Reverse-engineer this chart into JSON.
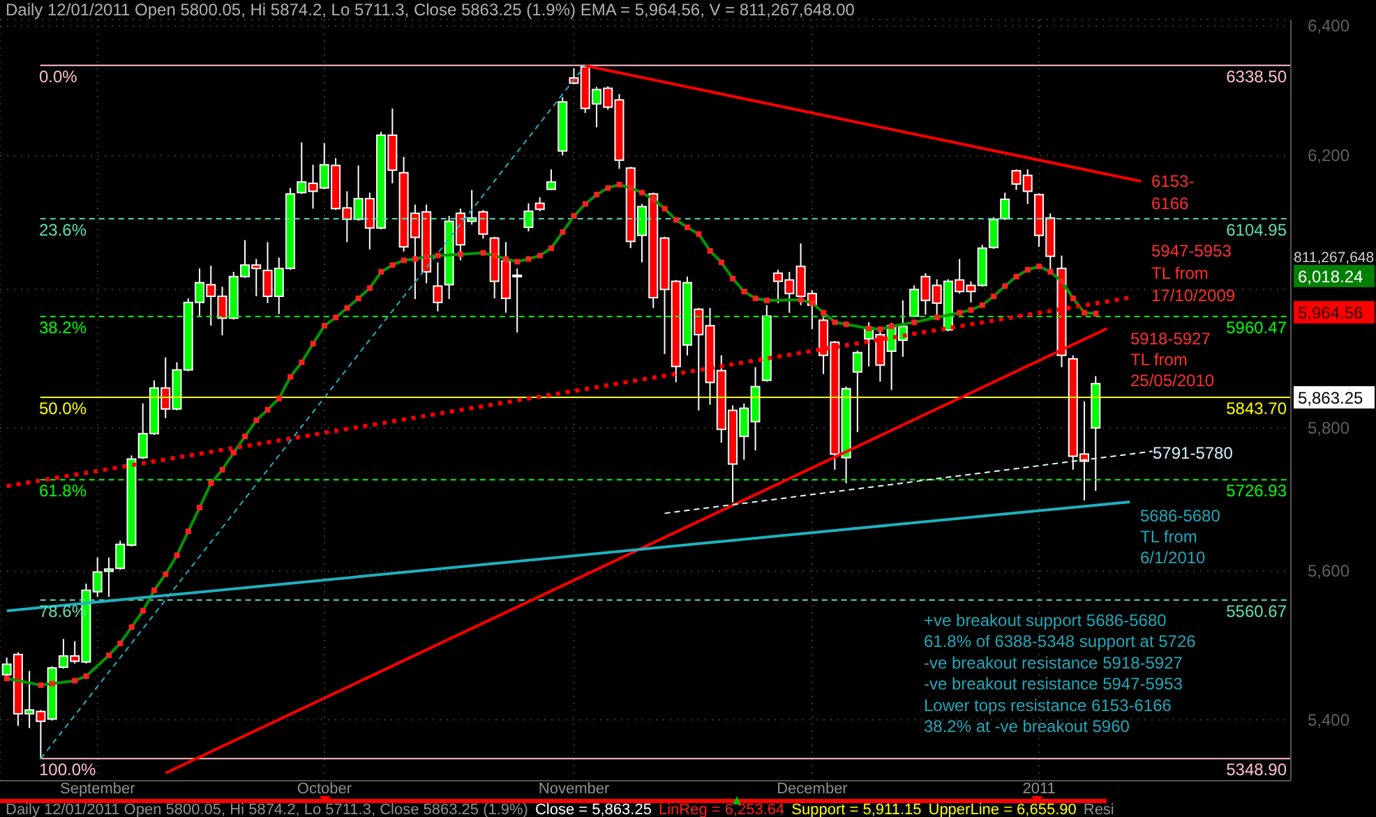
{
  "chart_data": {
    "type": "candlestick",
    "title": "Daily 12/01/2011 Open 5800.05, Hi 5874.2, Lo 5711.3, Close 5863.25 (1.9%) EMA = 5,964.56, V = 811,267,648.00",
    "categories": [
      null,
      null,
      null,
      null,
      null,
      null,
      null,
      null,
      "September",
      null,
      null,
      null,
      null,
      null,
      null,
      null,
      null,
      null,
      null,
      null,
      null,
      null,
      null,
      null,
      null,
      null,
      null,
      null,
      "October",
      null,
      null,
      null,
      null,
      null,
      null,
      null,
      null,
      null,
      null,
      null,
      null,
      null,
      null,
      null,
      null,
      null,
      null,
      null,
      null,
      null,
      "November",
      null,
      null,
      null,
      null,
      null,
      null,
      null,
      null,
      null,
      null,
      null,
      null,
      null,
      null,
      null,
      null,
      null,
      null,
      null,
      null,
      "December",
      null,
      null,
      null,
      null,
      null,
      null,
      null,
      null,
      null,
      null,
      null,
      null,
      null,
      null,
      null,
      null,
      null,
      null,
      null,
      "2011",
      null,
      null,
      null,
      null,
      null,
      null,
      null,
      null,
      null,
      null,
      null,
      null,
      null,
      null,
      null,
      null,
      null,
      null,
      null,
      null,
      null
    ],
    "ohlc": [
      [
        5460,
        5483,
        5458,
        5474
      ],
      [
        5487,
        5490,
        5392,
        5408
      ],
      [
        5408,
        5465,
        5389,
        5413
      ],
      [
        5411,
        5413,
        5349,
        5398
      ],
      [
        5401,
        5471,
        5399,
        5469
      ],
      [
        5470,
        5508,
        5468,
        5485
      ],
      [
        5485,
        5505,
        5475,
        5478
      ],
      [
        5477,
        5583,
        5475,
        5574
      ],
      [
        5572,
        5619,
        5565,
        5599
      ],
      [
        5600,
        5619,
        5565,
        5603
      ],
      [
        5604,
        5642,
        5602,
        5637
      ],
      [
        5636,
        5761,
        5634,
        5756
      ],
      [
        5758,
        5835,
        5756,
        5792
      ],
      [
        5792,
        5868,
        5790,
        5857
      ],
      [
        5857,
        5901,
        5814,
        5827
      ],
      [
        5827,
        5894,
        5825,
        5883
      ],
      [
        5883,
        5987,
        5881,
        5981
      ],
      [
        5981,
        6031,
        5961,
        6010
      ],
      [
        6007,
        6035,
        5947,
        5990
      ],
      [
        5990,
        6004,
        5933,
        5958
      ],
      [
        5958,
        6026,
        5956,
        6019
      ],
      [
        6019,
        6073,
        6017,
        6036
      ],
      [
        6036,
        6045,
        5990,
        6031
      ],
      [
        6028,
        6070,
        5980,
        5990
      ],
      [
        5990,
        6047,
        5964,
        6031
      ],
      [
        6031,
        6151,
        6029,
        6142
      ],
      [
        6144,
        6220,
        6142,
        6160
      ],
      [
        6158,
        6186,
        6120,
        6146
      ],
      [
        6151,
        6219,
        6149,
        6186
      ],
      [
        6185,
        6196,
        6118,
        6120
      ],
      [
        6121,
        6146,
        6070,
        6104
      ],
      [
        6104,
        6185,
        6102,
        6135
      ],
      [
        6135,
        6144,
        6059,
        6091
      ],
      [
        6091,
        6236,
        6089,
        6231
      ],
      [
        6231,
        6272,
        6158,
        6178
      ],
      [
        6174,
        6198,
        6056,
        6063
      ],
      [
        6113,
        6126,
        5986,
        6077
      ],
      [
        6115,
        6126,
        6009,
        6026
      ],
      [
        6005,
        6040,
        5968,
        5981
      ],
      [
        6007,
        6109,
        5986,
        6101
      ],
      [
        6113,
        6120,
        6043,
        6066
      ],
      [
        6101,
        6148,
        6096,
        6106
      ],
      [
        6115,
        6118,
        6075,
        6082
      ],
      [
        6076,
        6078,
        5987,
        6012
      ],
      [
        6042,
        6070,
        5966,
        5987
      ],
      [
        6020,
        6031,
        5937,
        6021
      ],
      [
        6092,
        6128,
        6086,
        6116
      ],
      [
        6128,
        6137,
        6116,
        6119
      ],
      [
        6149,
        6179,
        6148,
        6160
      ],
      [
        6207,
        6289,
        6200,
        6282
      ],
      [
        6319,
        6334,
        6309,
        6311
      ],
      [
        6336,
        6338.5,
        6265,
        6272
      ],
      [
        6279,
        6305,
        6243,
        6301
      ],
      [
        6303,
        6306,
        6270,
        6274
      ],
      [
        6285,
        6294,
        6180,
        6193
      ],
      [
        6181,
        6183,
        6061,
        6071
      ],
      [
        6080,
        6127,
        6040,
        6123
      ],
      [
        6142,
        6144,
        5973,
        5988
      ],
      [
        6076,
        6078,
        5906,
        6000
      ],
      [
        6012,
        6014,
        5865,
        5888
      ],
      [
        5919,
        6019,
        5904,
        6010
      ],
      [
        5971,
        5973,
        5825,
        5934
      ],
      [
        5947,
        5973,
        5833,
        5865
      ],
      [
        5882,
        5904,
        5779,
        5798
      ],
      [
        5825,
        5832,
        5695,
        5749
      ],
      [
        5788,
        5835,
        5755,
        5828
      ],
      [
        5809,
        5887,
        5768,
        5859
      ],
      [
        5868,
        5977,
        5866,
        5961
      ],
      [
        6024,
        6029,
        5980,
        6012
      ],
      [
        6014,
        6026,
        5966,
        5994
      ],
      [
        6034,
        6068,
        5977,
        5990
      ],
      [
        5994,
        5999,
        5942,
        5977
      ],
      [
        5955,
        5959,
        5877,
        5904
      ],
      [
        5923,
        5925,
        5741,
        5763
      ],
      [
        5758,
        5859,
        5722,
        5856
      ],
      [
        5880,
        5911,
        5794,
        5908
      ],
      [
        5928,
        5952,
        5888,
        5944
      ],
      [
        5934,
        5939,
        5866,
        5890
      ],
      [
        5910,
        5951,
        5854,
        5947
      ],
      [
        5926,
        5984,
        5902,
        5946
      ],
      [
        5961,
        6006,
        5959,
        6000
      ],
      [
        6019,
        6024,
        5963,
        5984
      ],
      [
        6006,
        6015,
        5963,
        5980
      ],
      [
        5941,
        6015,
        5939,
        6012
      ],
      [
        6014,
        6045,
        5994,
        5997
      ],
      [
        6006,
        6012,
        5981,
        5997
      ],
      [
        6006,
        6066,
        6004,
        6061
      ],
      [
        6062,
        6107,
        6060,
        6104
      ],
      [
        6105,
        6144,
        6103,
        6134
      ],
      [
        6177,
        6179,
        6148,
        6157
      ],
      [
        6170,
        6179,
        6127,
        6146
      ],
      [
        6141,
        6143,
        6063,
        6080
      ],
      [
        6106,
        6113,
        6026,
        6049
      ],
      [
        6031,
        6050,
        5887,
        5904
      ],
      [
        5899,
        5904,
        5741,
        5760
      ],
      [
        5763,
        5838,
        5698,
        5753
      ],
      [
        5800.05,
        5874.2,
        5711.3,
        5863.25
      ],
      null,
      null,
      null,
      null,
      null,
      null,
      null,
      null,
      null,
      null,
      null,
      null,
      null,
      null,
      null,
      null
    ],
    "series": [
      {
        "type": "line",
        "color": "#009900",
        "marker": "square",
        "line_style": "solid",
        "values": [
          5455,
          null,
          null,
          5446,
          5448,
          null,
          5452,
          5458,
          null,
          5486,
          5502,
          5524,
          5546,
          5574,
          5596,
          5622,
          5655,
          5688,
          5722,
          5741,
          5765,
          5788,
          5811,
          5826,
          5842,
          5873,
          5894,
          5921,
          5947,
          5959,
          5973,
          5987,
          6002,
          6026,
          6036,
          6043,
          6045,
          6048,
          6050,
          null,
          6052,
          null,
          6054,
          6050,
          6045,
          6041,
          6045,
          6050,
          6061,
          6085,
          6109,
          6127,
          6141,
          6151,
          6156,
          6151,
          6144,
          6134,
          6120,
          6103,
          6092,
          6082,
          6057,
          6040,
          6016,
          5997,
          5987,
          5984,
          null,
          null,
          5985,
          5980,
          5966,
          5952,
          5949,
          null,
          5943,
          5942,
          5946,
          null,
          5952,
          null,
          5959,
          null,
          5966,
          5970,
          5977,
          5990,
          6005,
          6019,
          6029,
          6034,
          6026,
          6012,
          5987,
          5966,
          5964.56,
          null,
          null,
          null,
          null,
          null,
          null,
          null,
          null,
          null,
          null,
          null,
          null,
          null,
          null,
          null,
          null
        ]
      },
      {
        "type": "line",
        "color": "#ff0000",
        "line_style": "solid",
        "values": [
          null,
          null,
          null,
          null,
          null,
          null,
          null,
          null,
          null,
          null,
          null,
          null,
          null,
          null,
          null,
          null,
          null,
          null,
          null,
          null,
          null,
          null,
          null,
          null,
          null,
          null,
          null,
          null,
          null,
          null,
          null,
          null,
          null,
          null,
          null,
          null,
          null,
          null,
          null,
          null,
          null,
          null,
          null,
          null,
          null,
          null,
          null,
          null,
          null,
          null,
          null,
          6338,
          null,
          null,
          null,
          null,
          null,
          null,
          null,
          null,
          null,
          null,
          null,
          null,
          null,
          null,
          null,
          null,
          null,
          null,
          null,
          null,
          null,
          null,
          null,
          null,
          null,
          null,
          null,
          null,
          null,
          null,
          null,
          null,
          null,
          null,
          null,
          null,
          null,
          null,
          null,
          null,
          null,
          null,
          null,
          null,
          null,
          null,
          null,
          null,
          6161,
          null,
          null,
          null,
          null,
          null,
          null,
          null,
          null,
          null,
          null,
          null,
          null
        ]
      },
      {
        "type": "line",
        "color": "#ff0000",
        "line_style": "dotted",
        "values": [
          5718,
          null,
          null,
          null,
          null,
          null,
          null,
          null,
          null,
          null,
          null,
          null,
          null,
          null,
          null,
          null,
          null,
          null,
          null,
          null,
          null,
          null,
          null,
          null,
          null,
          null,
          null,
          null,
          null,
          null,
          null,
          null,
          null,
          null,
          null,
          null,
          null,
          null,
          null,
          null,
          null,
          null,
          null,
          null,
          null,
          null,
          null,
          null,
          null,
          null,
          null,
          null,
          null,
          null,
          null,
          null,
          null,
          null,
          null,
          null,
          null,
          null,
          null,
          null,
          null,
          null,
          null,
          null,
          null,
          null,
          null,
          null,
          null,
          null,
          null,
          null,
          null,
          null,
          null,
          null,
          null,
          null,
          null,
          null,
          null,
          null,
          null,
          null,
          null,
          null,
          null,
          null,
          null,
          null,
          null,
          null,
          null,
          null,
          null,
          5988,
          null,
          null,
          null,
          null,
          null,
          null,
          null,
          null,
          null,
          null,
          null,
          null,
          null
        ]
      },
      {
        "type": "line",
        "color": "#ff0000",
        "line_style": "solid",
        "values": [
          null,
          null,
          null,
          null,
          null,
          null,
          null,
          null,
          null,
          null,
          null,
          null,
          null,
          null,
          5330,
          null,
          null,
          null,
          null,
          null,
          null,
          null,
          null,
          null,
          null,
          null,
          null,
          null,
          null,
          null,
          null,
          null,
          null,
          null,
          null,
          null,
          null,
          null,
          null,
          null,
          null,
          null,
          null,
          null,
          null,
          null,
          null,
          null,
          null,
          null,
          null,
          null,
          null,
          null,
          null,
          null,
          null,
          null,
          null,
          null,
          null,
          null,
          null,
          null,
          null,
          null,
          null,
          null,
          null,
          null,
          null,
          null,
          null,
          null,
          null,
          null,
          null,
          null,
          null,
          null,
          null,
          null,
          null,
          null,
          null,
          null,
          null,
          null,
          null,
          null,
          null,
          null,
          null,
          null,
          null,
          null,
          null,
          5943,
          null,
          null,
          null,
          null,
          null,
          null,
          null,
          null,
          null,
          null,
          null,
          null,
          null,
          null,
          null
        ]
      },
      {
        "type": "line",
        "color": "#20b0c0",
        "line_style": "solid",
        "values": [
          5546,
          null,
          null,
          null,
          null,
          null,
          null,
          null,
          null,
          null,
          null,
          null,
          null,
          null,
          null,
          null,
          null,
          null,
          null,
          null,
          null,
          null,
          null,
          null,
          null,
          null,
          null,
          null,
          null,
          null,
          null,
          null,
          null,
          null,
          null,
          null,
          null,
          null,
          null,
          null,
          null,
          null,
          null,
          null,
          null,
          null,
          null,
          null,
          null,
          null,
          null,
          null,
          null,
          null,
          null,
          null,
          null,
          null,
          null,
          null,
          null,
          null,
          null,
          null,
          null,
          null,
          null,
          null,
          null,
          null,
          null,
          null,
          null,
          null,
          null,
          null,
          null,
          null,
          null,
          null,
          null,
          null,
          null,
          null,
          null,
          null,
          null,
          null,
          null,
          null,
          null,
          null,
          null,
          null,
          null,
          null,
          null,
          null,
          null,
          5696,
          null,
          null,
          null,
          null,
          null,
          null,
          null,
          null,
          null,
          null,
          null,
          null,
          null
        ]
      },
      {
        "type": "line",
        "color": "#e0ffff",
        "line_style": "dashed",
        "values": [
          null,
          null,
          null,
          null,
          null,
          null,
          null,
          null,
          null,
          null,
          null,
          null,
          null,
          null,
          null,
          null,
          null,
          null,
          null,
          null,
          null,
          null,
          null,
          null,
          null,
          null,
          null,
          null,
          null,
          null,
          null,
          null,
          null,
          null,
          null,
          null,
          null,
          null,
          null,
          null,
          null,
          null,
          null,
          null,
          null,
          null,
          null,
          null,
          null,
          null,
          null,
          null,
          null,
          null,
          null,
          null,
          null,
          null,
          5680,
          null,
          null,
          null,
          null,
          null,
          null,
          null,
          null,
          null,
          null,
          null,
          null,
          null,
          null,
          null,
          null,
          null,
          null,
          null,
          null,
          null,
          null,
          null,
          null,
          null,
          null,
          null,
          null,
          null,
          null,
          null,
          null,
          null,
          null,
          null,
          null,
          null,
          null,
          null,
          null,
          null,
          null,
          5767,
          null,
          null,
          null,
          null,
          null,
          null,
          null,
          null,
          null,
          null,
          null
        ]
      },
      {
        "type": "line",
        "color": "#20b0c0",
        "line_style": "dashed",
        "values": [
          null,
          null,
          null,
          5348.9,
          null,
          null,
          null,
          null,
          null,
          null,
          null,
          null,
          null,
          null,
          null,
          null,
          null,
          null,
          null,
          null,
          null,
          null,
          null,
          null,
          null,
          null,
          null,
          null,
          null,
          null,
          null,
          null,
          null,
          null,
          null,
          null,
          null,
          null,
          null,
          null,
          null,
          null,
          null,
          null,
          null,
          null,
          null,
          null,
          null,
          null,
          null,
          6338.5,
          null,
          null,
          null,
          null,
          null,
          null,
          null,
          null,
          null,
          null,
          null,
          null,
          null,
          null,
          null,
          null,
          null,
          null,
          null,
          null,
          null,
          null,
          null,
          null,
          null,
          null,
          null,
          null,
          null,
          null,
          null,
          null,
          null,
          null,
          null,
          null,
          null,
          null,
          null,
          null,
          null,
          null,
          null,
          null,
          null,
          null,
          null,
          null,
          null,
          null,
          null,
          null,
          null,
          null,
          null,
          null,
          null,
          null,
          null,
          null,
          null
        ]
      }
    ],
    "ref_lines": [
      {
        "axis": "y",
        "value": 6338.5,
        "label": "6338.50",
        "color": "#ffc0cb",
        "line_style": "solid"
      },
      {
        "axis": "y",
        "value": 6104.95,
        "label": "6104.95",
        "color": "#60e0b0",
        "line_style": "dashed"
      },
      {
        "axis": "y",
        "value": 5960.47,
        "label": "5960.47",
        "color": "#00ff00",
        "line_style": "dashed"
      },
      {
        "axis": "y",
        "value": 5843.7,
        "label": "5843.70",
        "color": "#ffff00",
        "line_style": "solid"
      },
      {
        "axis": "y",
        "value": 5726.93,
        "label": "5726.93",
        "color": "#00ff00",
        "line_style": "dashed"
      },
      {
        "axis": "y",
        "value": 5560.67,
        "label": "5560.67",
        "color": "#60e0b0",
        "line_style": "dashed"
      },
      {
        "axis": "y",
        "value": 5348.9,
        "label": "5348.90",
        "color": "#ffc0cb",
        "line_style": "solid"
      }
    ],
    "annotations": [
      "0.0%",
      "23.6%",
      "38.2%",
      "50.0%",
      "61.8%",
      "78.6%",
      "100.0%",
      "811,267,648",
      "6,018.24",
      "5,964.56",
      "5,863.25",
      "6153-\n6166",
      "5947-5953\nTL from\n17/10/2009",
      "5918-5927\nTL from\n25/05/2010",
      "5791-5780",
      "5686-5680\nTL from\n6/1/2010",
      "+ve breakout support 5686-5680\n61.8% of 6388-5348 support at 5726\n-ve breakout resistance 5918-5927\n-ve breakout resistance 5947-5953\nLower tops resistance 6153-6166\n38.2% at -ve breakout 5960",
      "Daily 12/01/2011 Open 5800.05, Hi 5874.2, Lo 5711.3, Close 5863.25 (1.9%)",
      "Close = 5,863.25",
      "LinReg = 6,253.64",
      "Support = 5,911.15",
      "UpperLine = 6,655.90",
      "Resi"
    ],
    "log": true,
    "ylim": [
      5320,
      6410
    ],
    "yticks": [
      {
        "value": 5400,
        "label": "5,400"
      },
      {
        "value": 5600,
        "label": "5,600"
      },
      {
        "value": 5800,
        "label": "5,800"
      },
      {
        "value": 6000,
        "label": null
      },
      {
        "value": 6200,
        "label": "6,200"
      },
      {
        "value": 6400,
        "label": "6,400"
      }
    ],
    "grid": true
  }
}
